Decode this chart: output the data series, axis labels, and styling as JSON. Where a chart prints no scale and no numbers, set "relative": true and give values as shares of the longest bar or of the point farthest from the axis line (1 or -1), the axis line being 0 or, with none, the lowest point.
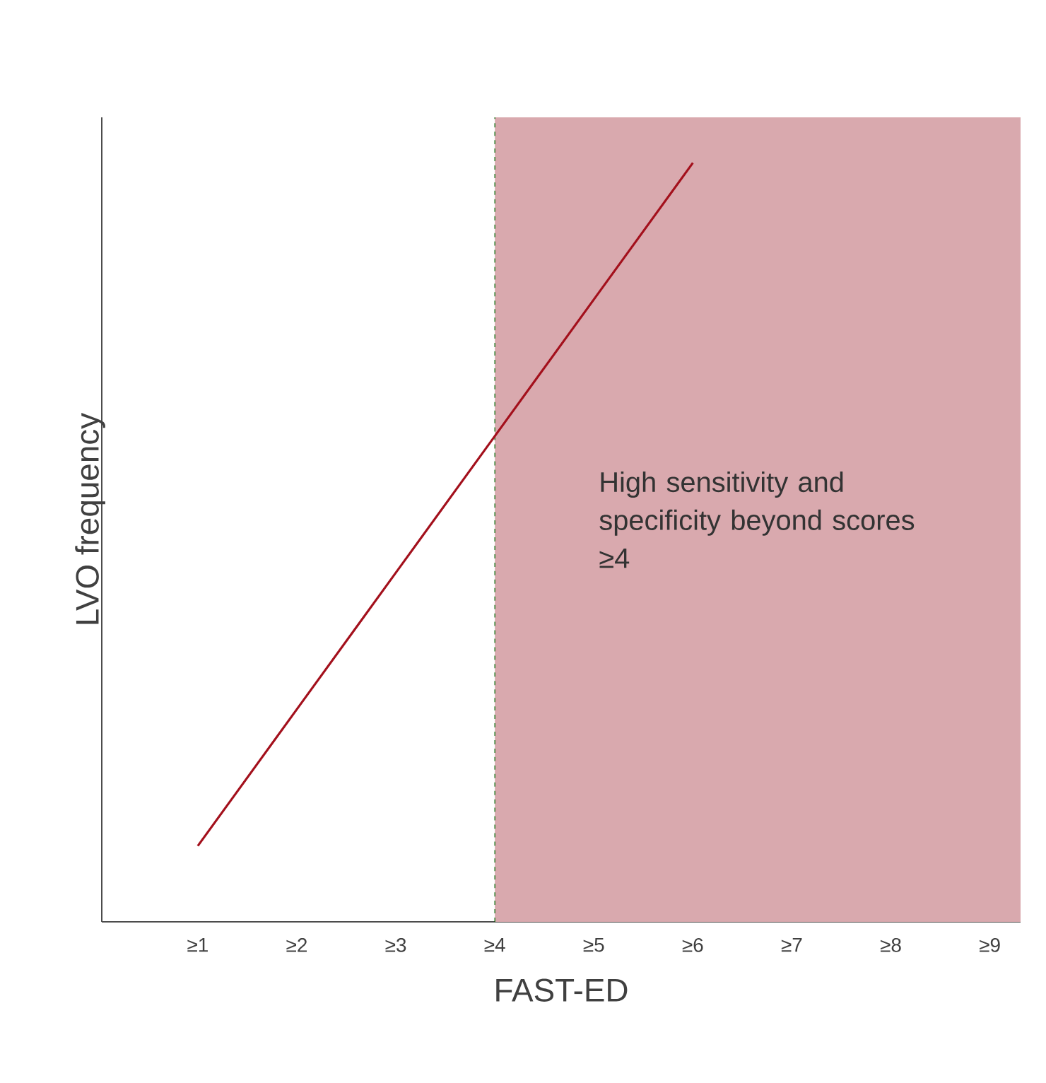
{
  "chart_data": {
    "type": "line",
    "relative": true,
    "xlabel": "FAST-ED",
    "ylabel": "LVO frequency",
    "tick_labels": "x",
    "categories": [
      "≥1",
      "≥2",
      "≥3",
      "≥4",
      "≥5",
      "≥6",
      "≥7",
      "≥8",
      "≥9"
    ],
    "series": [
      {
        "color": "#a3101c",
        "values": [
          0.1,
          0.28,
          0.46,
          0.64,
          0.82,
          1.0,
          null,
          null,
          null
        ]
      }
    ],
    "bands": [
      {
        "axis": "x",
        "from": "≥4",
        "to": "≥9",
        "color": "#d9a9ae"
      }
    ],
    "ref_lines": [
      {
        "axis": "x",
        "value": "≥4",
        "color": "#006600",
        "line_style": "dashed"
      }
    ],
    "annotations": [
      "High sensitivity and specificity beyond scores ≥4"
    ]
  }
}
